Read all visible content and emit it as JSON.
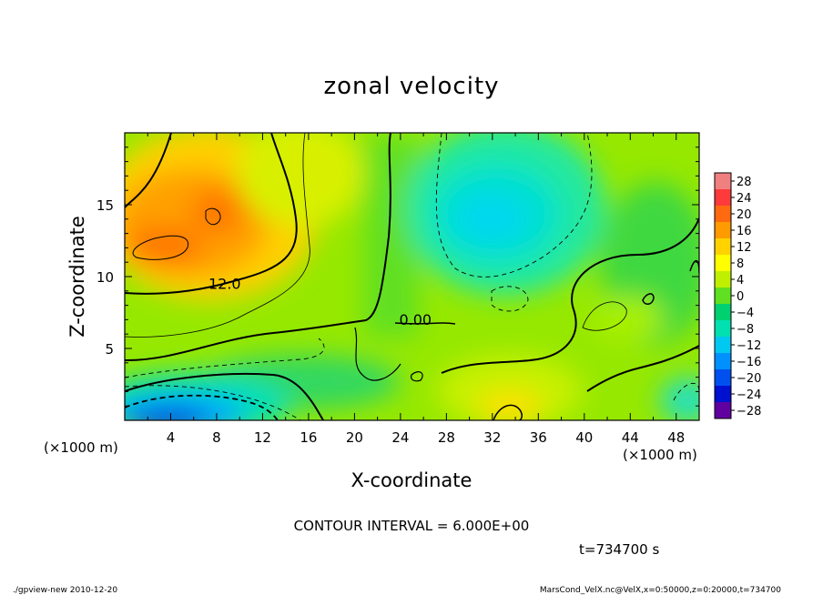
{
  "chart_data": {
    "type": "heatmap",
    "subtype": "filled-contour",
    "title": "zonal velocity",
    "xlabel": "X-coordinate",
    "ylabel": "Z-coordinate",
    "x_unit_note": "(×1000 m)",
    "z_unit_note": "(×1000 m)",
    "xlim": [
      0,
      50
    ],
    "ylim": [
      0,
      20
    ],
    "x_ticks": [
      4,
      8,
      12,
      16,
      20,
      24,
      28,
      32,
      36,
      40,
      44,
      48
    ],
    "y_ticks": [
      5,
      10,
      15
    ],
    "colorbar_levels": [
      28,
      24,
      20,
      16,
      12,
      8,
      4,
      0,
      -4,
      -8,
      -12,
      -16,
      -20,
      -24,
      -28
    ],
    "colorbar_colors": [
      "#f08080",
      "#ff3a3a",
      "#ff6a10",
      "#ff9a00",
      "#ffd200",
      "#ffff00",
      "#c0f000",
      "#60e020",
      "#00d070",
      "#00e0b0",
      "#00c8f0",
      "#0090ff",
      "#0050f0",
      "#0010d0",
      "#6000a0"
    ],
    "contour_labels": [
      {
        "text": "12.0",
        "x": 8.7,
        "z": 9.4
      },
      {
        "text": "0.00",
        "x": 25.3,
        "z": 6.9
      }
    ],
    "contour_interval_text": "CONTOUR INTERVAL = 6.000E+00",
    "time_text": "t=734700 s",
    "field_maxima_note": [
      {
        "x": 5,
        "z": 12,
        "value": 18
      },
      {
        "x": 30,
        "z": 14,
        "value": -9
      },
      {
        "x": 8,
        "z": 1,
        "value": -18
      }
    ]
  },
  "footer": {
    "left": "./gpview-new  2010-12-20",
    "right": "MarsCond_VelX.nc@VelX,x=0:50000,z=0:20000,t=734700"
  }
}
